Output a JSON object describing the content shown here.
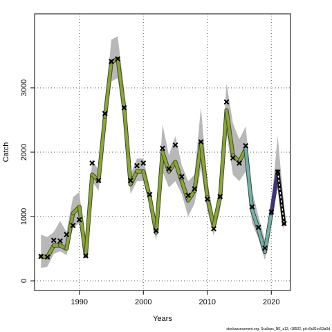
{
  "chart_data": {
    "type": "line",
    "title": "",
    "xlabel": "Years",
    "ylabel": "Catch",
    "xlim": [
      1983,
      2023
    ],
    "ylim": [
      -150,
      4150
    ],
    "x_ticks": [
      1990,
      2000,
      2010,
      2020
    ],
    "y_ticks": [
      0,
      1000,
      2000,
      3000
    ],
    "grid": true,
    "observed": {
      "x": [
        1984,
        1985,
        1986,
        1987,
        1988,
        1989,
        1990,
        1991,
        1992,
        1993,
        1994,
        1995,
        1996,
        1997,
        1998,
        1999,
        2000,
        2001,
        2002,
        2003,
        2004,
        2005,
        2006,
        2007,
        2008,
        2009,
        2010,
        2011,
        2012,
        2013,
        2014,
        2015,
        2016,
        2017,
        2018,
        2019,
        2020,
        2021,
        2022
      ],
      "y": [
        380,
        370,
        630,
        620,
        720,
        860,
        950,
        390,
        1830,
        1560,
        2600,
        3410,
        3450,
        2690,
        1560,
        1790,
        1830,
        1340,
        780,
        2060,
        1740,
        2110,
        1620,
        1330,
        1430,
        2160,
        1270,
        810,
        1310,
        2780,
        1910,
        1830,
        2100,
        1150,
        830,
        510,
        1070,
        1690,
        890
      ]
    },
    "fitted": {
      "x": [
        1984,
        1985,
        1986,
        1987,
        1988,
        1989,
        1990,
        1991,
        1992,
        1993,
        1994,
        1995,
        1996,
        1997,
        1998,
        1999,
        2000,
        2001,
        2002,
        2003,
        2004,
        2005,
        2006,
        2007,
        2008,
        2009,
        2010,
        2011,
        2012,
        2013,
        2014,
        2015,
        2016,
        2017,
        2018,
        2019,
        2020,
        2021,
        2022
      ],
      "y": [
        380,
        370,
        550,
        550,
        500,
        1050,
        1150,
        390,
        1650,
        1560,
        2550,
        3400,
        3450,
        2690,
        1500,
        1700,
        1700,
        1300,
        750,
        2000,
        1700,
        1850,
        1550,
        1250,
        1400,
        2150,
        1300,
        850,
        1300,
        2650,
        1950,
        1850,
        2050,
        1100,
        800,
        450,
        1050,
        1700,
        890
      ],
      "lower": [
        200,
        220,
        420,
        460,
        400,
        820,
        900,
        350,
        1550,
        1400,
        2350,
        3100,
        3150,
        2450,
        1350,
        1550,
        1550,
        1150,
        620,
        1700,
        1450,
        1550,
        1350,
        1000,
        1200,
        1750,
        1100,
        700,
        1100,
        2300,
        1650,
        1550,
        1700,
        900,
        650,
        320,
        880,
        1450,
        750
      ],
      "upper": [
        720,
        680,
        760,
        930,
        760,
        1300,
        1380,
        470,
        1880,
        1720,
        2760,
        3750,
        3800,
        2950,
        1650,
        1900,
        1900,
        1450,
        870,
        2430,
        1950,
        2250,
        1800,
        1550,
        1650,
        2700,
        1550,
        1000,
        1500,
        3070,
        2450,
        2200,
        2400,
        1400,
        1000,
        640,
        1200,
        2250,
        1150
      ]
    },
    "segment_colors": [
      {
        "from": 1984,
        "to": 2016,
        "color": "#88a82c"
      },
      {
        "from": 2016,
        "to": 2020,
        "color": "#6fb3a8"
      },
      {
        "from": 2020,
        "to": 2021,
        "color": "#3d2f8a"
      },
      {
        "from": 2021,
        "to": 2022,
        "color": "#000000"
      }
    ],
    "band_color": "#b8b8b8",
    "marker": "x",
    "footer_text": "stockassessment.org, Scallops_NE_a13, r18502, git:c9c81ec53a0d"
  }
}
